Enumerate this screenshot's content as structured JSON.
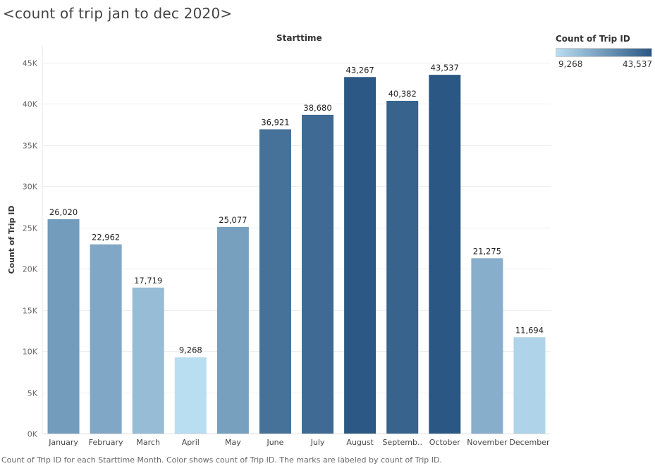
{
  "title": "<count of trip jan to dec 2020>",
  "column_header": "Starttime",
  "legend": {
    "title": "Count of Trip ID",
    "min_label": "9,268",
    "max_label": "43,537",
    "color_low": "#b9ddf1",
    "color_high": "#2a5783"
  },
  "caption": "Count of Trip ID for each Starttime Month.  Color shows count of Trip ID.  The marks are labeled by count of Trip ID.",
  "chart_data": {
    "type": "bar",
    "title": "<count of trip jan to dec 2020>",
    "xlabel": "Starttime",
    "ylabel": "Count of Trip ID",
    "categories": [
      "January",
      "February",
      "March",
      "April",
      "May",
      "June",
      "July",
      "August",
      "Septemb..",
      "October",
      "November",
      "December"
    ],
    "values": [
      26020,
      22962,
      17719,
      9268,
      25077,
      36921,
      38680,
      43267,
      40382,
      43537,
      21275,
      11694
    ],
    "value_labels": [
      "26,020",
      "22,962",
      "17,719",
      "9,268",
      "25,077",
      "36,921",
      "38,680",
      "43,267",
      "40,382",
      "43,537",
      "21,275",
      "11,694"
    ],
    "ylim": [
      0,
      45000
    ],
    "yticks": [
      0,
      5000,
      10000,
      15000,
      20000,
      25000,
      30000,
      35000,
      40000,
      45000
    ],
    "ytick_labels": [
      "0K",
      "5K",
      "10K",
      "15K",
      "20K",
      "25K",
      "30K",
      "35K",
      "40K",
      "45K"
    ],
    "grid": true,
    "legend_position": "top-right"
  }
}
